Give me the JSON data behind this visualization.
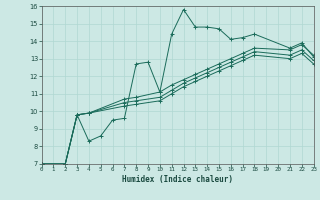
{
  "xlabel": "Humidex (Indice chaleur)",
  "xlim": [
    0,
    23
  ],
  "ylim": [
    7,
    16
  ],
  "xticks": [
    0,
    1,
    2,
    3,
    4,
    5,
    6,
    7,
    8,
    9,
    10,
    11,
    12,
    13,
    14,
    15,
    16,
    17,
    18,
    19,
    20,
    21,
    22,
    23
  ],
  "yticks": [
    7,
    8,
    9,
    10,
    11,
    12,
    13,
    14,
    15,
    16
  ],
  "bg_color": "#cce8e4",
  "line_color": "#1a6b5a",
  "grid_color": "#b0d8d2",
  "lines": [
    {
      "x": [
        0,
        2,
        3,
        4,
        5,
        6,
        7,
        8,
        9,
        10,
        11,
        12,
        13,
        14,
        15,
        16,
        17,
        18,
        21,
        22,
        23
      ],
      "y": [
        7,
        7,
        9.8,
        8.3,
        8.6,
        9.5,
        9.6,
        12.7,
        12.8,
        11.1,
        14.4,
        15.8,
        14.8,
        14.8,
        14.7,
        14.1,
        14.2,
        14.4,
        13.6,
        13.9,
        13.1
      ]
    },
    {
      "x": [
        0,
        2,
        3,
        4,
        7,
        8,
        10,
        11,
        12,
        13,
        14,
        15,
        16,
        17,
        18,
        21,
        22,
        23
      ],
      "y": [
        7,
        7,
        9.8,
        9.9,
        10.7,
        10.8,
        11.1,
        11.5,
        11.8,
        12.1,
        12.4,
        12.7,
        13.0,
        13.3,
        13.6,
        13.5,
        13.8,
        13.2
      ]
    },
    {
      "x": [
        0,
        2,
        3,
        4,
        7,
        8,
        10,
        11,
        12,
        13,
        14,
        15,
        16,
        17,
        18,
        21,
        22,
        23
      ],
      "y": [
        7,
        7,
        9.8,
        9.9,
        10.5,
        10.6,
        10.8,
        11.2,
        11.6,
        11.9,
        12.2,
        12.5,
        12.8,
        13.1,
        13.4,
        13.2,
        13.5,
        12.9
      ]
    },
    {
      "x": [
        0,
        2,
        3,
        4,
        7,
        8,
        10,
        11,
        12,
        13,
        14,
        15,
        16,
        17,
        18,
        21,
        22,
        23
      ],
      "y": [
        7,
        7,
        9.8,
        9.9,
        10.3,
        10.4,
        10.6,
        11.0,
        11.4,
        11.7,
        12.0,
        12.3,
        12.6,
        12.9,
        13.2,
        13.0,
        13.3,
        12.7
      ]
    }
  ]
}
